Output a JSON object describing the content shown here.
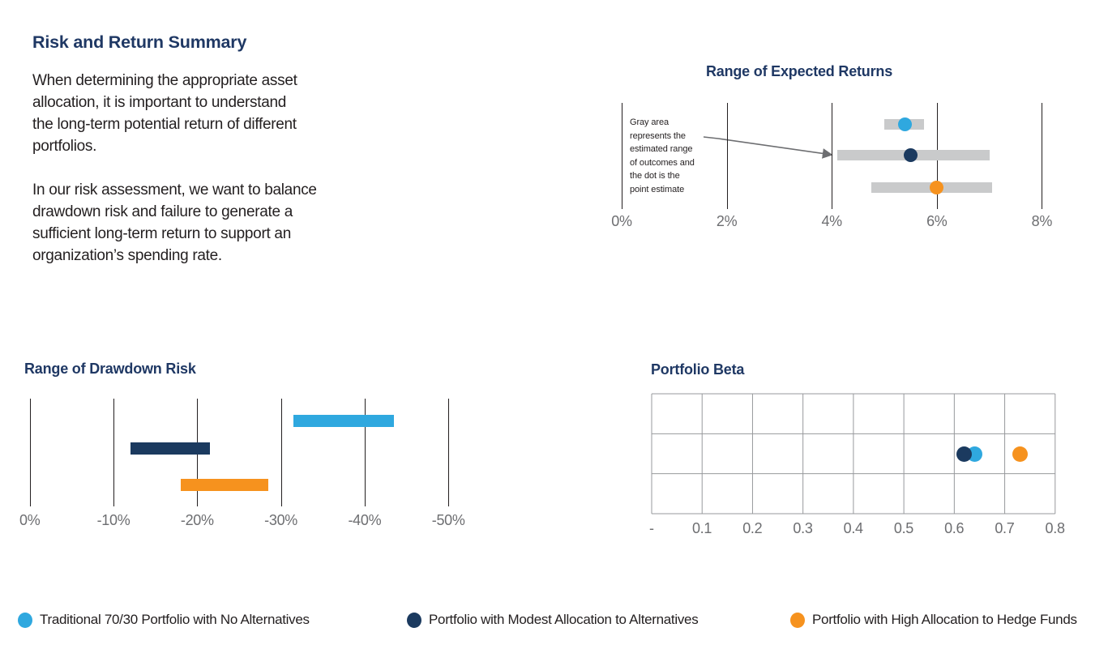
{
  "intro": {
    "heading": "Risk and Return Summary",
    "paragraphs": [
      "When determining the appropriate asset\nallocation, it is important to understand\nthe long-term potential return of different\nportfolios.",
      "In our risk assessment, we want to balance\ndrawdown risk and failure to generate a\nsufficient long-term return to support an\norganization’s spending rate."
    ]
  },
  "colors": {
    "heading_navy": "#1F3864",
    "navy": "#1B3A5F",
    "light_blue": "#2FA8DF",
    "orange": "#F6921E",
    "range_gray": "#C9CACB",
    "axis_line": "#231F20",
    "label_gray": "#6D6E71",
    "grid_gray": "#97999C",
    "text_dark": "#231F20",
    "arrow_gray": "#6D6E71"
  },
  "legend": {
    "items": [
      {
        "label": "Traditional 70/30 Portfolio with No Alternatives",
        "color_key": "light_blue"
      },
      {
        "label": "Portfolio with Modest Allocation to Alternatives",
        "color_key": "navy"
      },
      {
        "label": "Portfolio with High Allocation to Hedge Funds",
        "color_key": "orange"
      }
    ]
  },
  "chart_data": [
    {
      "type": "scatter",
      "subtype": "dot-with-range-band",
      "title": "Range of Expected Returns",
      "annotation": "Gray area\nrepresents the\nestimated range\nof outcomes and\nthe dot is the\npoint estimate",
      "xlim": [
        0,
        8
      ],
      "tick_values": [
        0,
        2,
        4,
        6,
        8
      ],
      "tick_labels": [
        "0%",
        "2%",
        "4%",
        "6%",
        "8%"
      ],
      "grid": "vertical-ticks-only",
      "series": [
        {
          "name": "Traditional 70/30 Portfolio with No Alternatives",
          "color_key": "light_blue",
          "range": [
            5.0,
            5.75
          ],
          "point": 5.4
        },
        {
          "name": "Portfolio with Modest Allocation to Alternatives",
          "color_key": "navy",
          "range": [
            4.1,
            7.0
          ],
          "point": 5.5
        },
        {
          "name": "Portfolio with High Allocation to Hedge Funds",
          "color_key": "orange",
          "range": [
            4.75,
            7.05
          ],
          "point": 6.0
        }
      ]
    },
    {
      "type": "bar",
      "subtype": "horizontal-floating-range-bars",
      "title": "Range of Drawdown Risk",
      "xlim": [
        0,
        -50
      ],
      "tick_values": [
        0,
        -10,
        -20,
        -30,
        -40,
        -50
      ],
      "tick_labels": [
        "0%",
        "-10%",
        "-20%",
        "-30%",
        "-40%",
        "-50%"
      ],
      "grid": "vertical-ticks-only",
      "series": [
        {
          "name": "Traditional 70/30 Portfolio with No Alternatives",
          "color_key": "light_blue",
          "range": [
            -31.5,
            -43.5
          ]
        },
        {
          "name": "Portfolio with Modest Allocation to Alternatives",
          "color_key": "navy",
          "range": [
            -12.0,
            -21.5
          ]
        },
        {
          "name": "Portfolio with High Allocation to Hedge Funds",
          "color_key": "orange",
          "range": [
            -18.0,
            -28.5
          ]
        }
      ]
    },
    {
      "type": "scatter",
      "subtype": "single-row-dots-on-grid",
      "title": "Portfolio Beta",
      "xlim": [
        0,
        0.8
      ],
      "tick_values": [
        0,
        0.1,
        0.2,
        0.3,
        0.4,
        0.5,
        0.6,
        0.7,
        0.8
      ],
      "tick_labels": [
        "-",
        "0.1",
        "0.2",
        "0.3",
        "0.4",
        "0.5",
        "0.6",
        "0.7",
        "0.8"
      ],
      "grid": {
        "cols": 8,
        "rows": 3
      },
      "series": [
        {
          "name": "Traditional 70/30 Portfolio with No Alternatives",
          "color_key": "light_blue",
          "value": 0.64
        },
        {
          "name": "Portfolio with Modest Allocation to Alternatives",
          "color_key": "navy",
          "value": 0.62
        },
        {
          "name": "Portfolio with High Allocation to Hedge Funds",
          "color_key": "orange",
          "value": 0.73
        }
      ]
    }
  ]
}
